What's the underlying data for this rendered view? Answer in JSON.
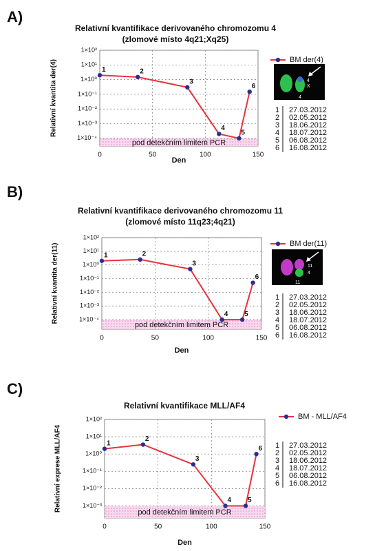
{
  "chart_data": [
    {
      "type": "line",
      "panel": "A)",
      "title": "Relativní kvantifikace derivovaného chromozomu 4",
      "subtitle": "(zlomové místo 4q21;Xq25)",
      "x_label": "Den",
      "y_label": "Relativní kvantita der(4)",
      "log_y": true,
      "grid": true,
      "x": [
        0,
        36,
        83,
        113,
        132,
        142
      ],
      "point_labels": [
        "1",
        "2",
        "3",
        "4",
        "5",
        "6"
      ],
      "series": [
        {
          "name": "BM der(4)",
          "color": "#e8323c",
          "marker_color": "#2a2f8f",
          "values": [
            2,
            1.5,
            0.3,
            0.0002,
            0.0001,
            0.15
          ]
        }
      ],
      "xlim": [
        0,
        150
      ],
      "xticks": [
        0,
        50,
        100,
        150
      ],
      "ylim": [
        3e-05,
        100
      ],
      "yticks": [
        {
          "value": 100,
          "label": "1×10²"
        },
        {
          "value": 10,
          "label": "1×10¹"
        },
        {
          "value": 1,
          "label": "1×10⁰"
        },
        {
          "value": 0.1,
          "label": "1×10⁻¹"
        },
        {
          "value": 0.01,
          "label": "1×10⁻²"
        },
        {
          "value": 0.001,
          "label": "1×10⁻³"
        },
        {
          "value": 0.0001,
          "label": "1×10⁻⁴"
        }
      ],
      "band": {
        "label": "pod detekčním limitem PCR",
        "to": 0.0001
      },
      "image_labels": [
        "4",
        "X",
        "4"
      ],
      "dates": [
        "27.03.2012",
        "02.05.2012",
        "18.06.2012",
        "18.07.2012",
        "06.08.2012",
        "16.08.2012"
      ]
    },
    {
      "type": "line",
      "panel": "B)",
      "title": "Relativní kvantifikace derivovaného chromozomu 11",
      "subtitle": "(zlomové místo 11q23;4q21)",
      "x_label": "Den",
      "y_label": "Relativní kvantita der(11)",
      "log_y": true,
      "grid": true,
      "x": [
        0,
        36,
        83,
        113,
        132,
        142
      ],
      "point_labels": [
        "1",
        "2",
        "3",
        "4",
        "5",
        "6"
      ],
      "series": [
        {
          "name": "BM der(11)",
          "color": "#e8323c",
          "marker_color": "#2a2f8f",
          "values": [
            2,
            2.5,
            0.5,
            0.0001,
            0.0001,
            0.05
          ]
        }
      ],
      "xlim": [
        0,
        150
      ],
      "xticks": [
        0,
        50,
        100,
        150
      ],
      "ylim": [
        2e-05,
        100
      ],
      "yticks": [
        {
          "value": 100,
          "label": "1×10²"
        },
        {
          "value": 10,
          "label": "1×10¹"
        },
        {
          "value": 1,
          "label": "1×10⁰"
        },
        {
          "value": 0.1,
          "label": "1×10⁻¹"
        },
        {
          "value": 0.01,
          "label": "1×10⁻²"
        },
        {
          "value": 0.001,
          "label": "1×10⁻³"
        },
        {
          "value": 0.0001,
          "label": "1×10⁻⁴"
        }
      ],
      "band": {
        "label": "pod detekčním limitem PCR",
        "to": 0.0001
      },
      "image_labels": [
        "11",
        "4",
        "11"
      ],
      "dates": [
        "27.03.2012",
        "02.05.2012",
        "18.06.2012",
        "18.07.2012",
        "06.08.2012",
        "16.08.2012"
      ]
    },
    {
      "type": "line",
      "panel": "C)",
      "title": "Relativní kvantifikace MLL/AF4",
      "x_label": "Den",
      "y_label": "Relativní exprese MLL/AF4",
      "log_y": true,
      "grid": true,
      "x": [
        0,
        36,
        83,
        113,
        132,
        142
      ],
      "point_labels": [
        "1",
        "2",
        "3",
        "4",
        "5",
        "6"
      ],
      "series": [
        {
          "name": "BM - MLL/AF4",
          "color": "#e8323c",
          "marker_color": "#2a2f8f",
          "values": [
            2,
            3.5,
            0.25,
            0.001,
            0.001,
            1
          ]
        }
      ],
      "xlim": [
        0,
        150
      ],
      "xticks": [
        0,
        50,
        100,
        150
      ],
      "ylim": [
        0.0002,
        100
      ],
      "yticks": [
        {
          "value": 100,
          "label": "1×10²"
        },
        {
          "value": 10,
          "label": "1×10¹"
        },
        {
          "value": 1,
          "label": "1×10⁰"
        },
        {
          "value": 0.1,
          "label": "1×10⁻¹"
        },
        {
          "value": 0.01,
          "label": "1×10⁻²"
        },
        {
          "value": 0.001,
          "label": "1×10⁻³"
        }
      ],
      "band": {
        "label": "pod detekčním limitem PCR",
        "to": 0.001
      },
      "dates": [
        "27.03.2012",
        "02.05.2012",
        "18.06.2012",
        "18.07.2012",
        "06.08.2012",
        "16.08.2012"
      ]
    }
  ]
}
